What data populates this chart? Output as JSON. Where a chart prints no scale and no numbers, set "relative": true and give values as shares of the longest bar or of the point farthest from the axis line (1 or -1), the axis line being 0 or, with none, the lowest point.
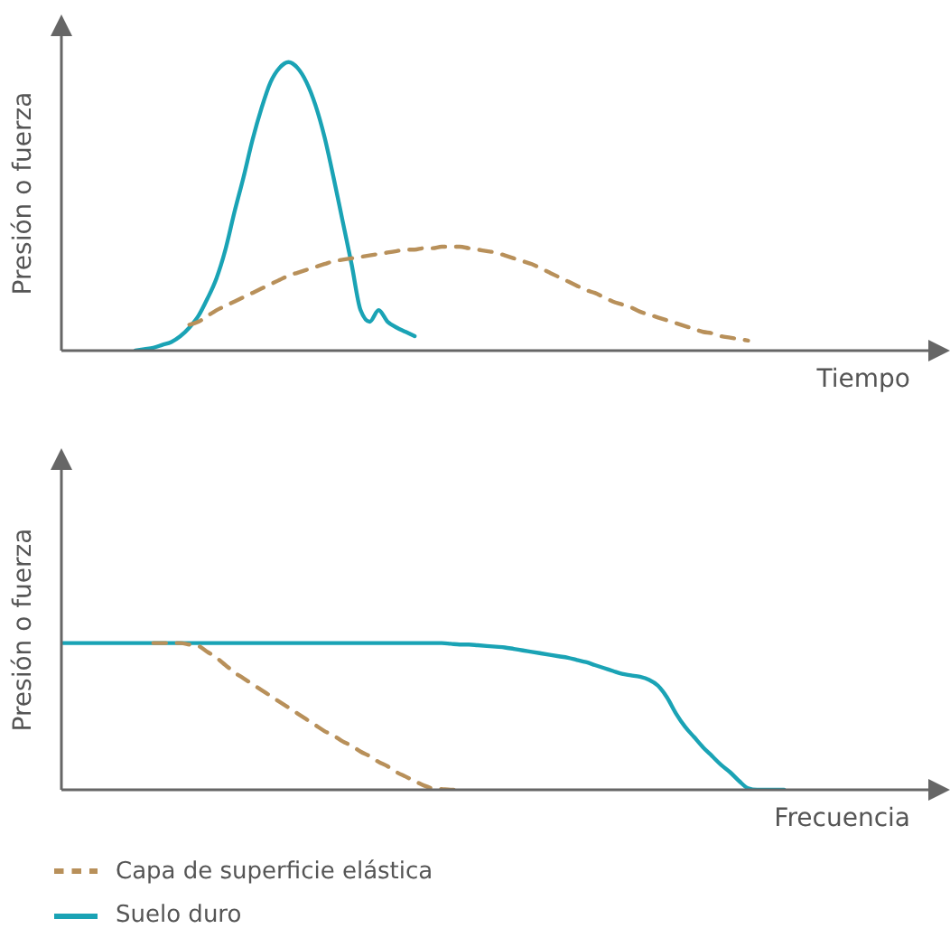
{
  "chart_data": [
    {
      "type": "line",
      "relative": true,
      "marker": "none",
      "xlabel": "Tiempo",
      "ylabel": "Presión o fuerza",
      "categories": [
        null,
        null,
        null,
        null,
        null,
        null,
        null,
        null,
        null,
        null,
        null,
        null,
        null,
        null,
        null,
        null,
        null,
        null,
        null,
        null,
        null,
        null,
        null,
        null,
        null,
        null,
        null,
        null,
        null,
        null,
        null,
        null,
        null,
        null,
        null,
        null,
        null,
        null,
        null,
        null,
        null,
        null,
        null,
        null,
        null,
        null,
        null,
        null,
        null,
        null,
        null,
        null,
        null,
        null,
        null,
        null,
        null,
        null,
        null,
        null,
        null,
        null,
        null,
        null,
        null,
        null,
        null,
        null,
        null,
        null,
        null,
        null,
        null,
        null,
        null,
        null,
        null,
        null,
        null,
        null,
        null,
        null,
        null,
        null,
        null,
        null,
        null,
        null,
        null,
        null,
        null,
        null,
        null,
        null,
        null,
        null,
        null
      ],
      "series": [
        {
          "color": "#1aa3b5",
          "line_style": "solid",
          "values": [
            null,
            null,
            null,
            null,
            null,
            null,
            null,
            null,
            0,
            0.005,
            0.01,
            0.02,
            0.03,
            0.05,
            0.08,
            0.12,
            0.18,
            0.25,
            0.35,
            0.48,
            0.6,
            0.73,
            0.84,
            0.93,
            0.98,
            1,
            0.98,
            0.93,
            0.85,
            0.74,
            0.6,
            0.45,
            0.3,
            0.14,
            0.1,
            0.14,
            0.1,
            0.08,
            0.065,
            0.05,
            null,
            null,
            null,
            null,
            null,
            null,
            null,
            null,
            null,
            null,
            null,
            null,
            null,
            null,
            null,
            null,
            null,
            null,
            null,
            null,
            null,
            null,
            null,
            null,
            null,
            null,
            null,
            null,
            null,
            null,
            null,
            null,
            null,
            null,
            null,
            null,
            null,
            null,
            null,
            null,
            null,
            null,
            null,
            null,
            null,
            null,
            null,
            null,
            null,
            null,
            null,
            null,
            null,
            null,
            null,
            null,
            null
          ]
        },
        {
          "color": "#b8905a",
          "line_style": "dashed",
          "values": [
            null,
            null,
            null,
            null,
            null,
            null,
            null,
            null,
            null,
            null,
            null,
            null,
            null,
            null,
            0.09,
            0.1,
            0.12,
            0.14,
            0.155,
            0.17,
            0.185,
            0.2,
            0.215,
            0.23,
            0.245,
            0.26,
            0.27,
            0.28,
            0.29,
            0.3,
            0.31,
            0.315,
            0.32,
            0.325,
            0.33,
            0.335,
            0.34,
            0.345,
            0.35,
            0.35,
            0.355,
            0.355,
            0.36,
            0.36,
            0.36,
            0.355,
            0.35,
            0.345,
            0.34,
            0.33,
            0.32,
            0.31,
            0.3,
            0.285,
            0.27,
            0.255,
            0.24,
            0.225,
            0.21,
            0.2,
            0.185,
            0.17,
            0.16,
            0.15,
            0.135,
            0.125,
            0.115,
            0.105,
            0.095,
            0.085,
            0.075,
            0.065,
            0.06,
            0.05,
            0.045,
            0.04,
            0.035,
            null,
            null,
            null,
            null,
            null,
            null,
            null,
            null,
            null,
            null,
            null,
            null,
            null,
            null,
            null,
            null,
            null,
            null,
            null,
            null
          ]
        }
      ]
    },
    {
      "type": "line",
      "relative": true,
      "marker": "none",
      "legend": "bottom",
      "xlabel": "Frecuencia",
      "ylabel": "Presión o fuerza",
      "categories": [
        null,
        null,
        null,
        null,
        null,
        null,
        null,
        null,
        null,
        null,
        null,
        null,
        null,
        null,
        null,
        null,
        null,
        null,
        null,
        null,
        null,
        null,
        null,
        null,
        null,
        null,
        null,
        null,
        null,
        null,
        null,
        null,
        null,
        null,
        null,
        null,
        null,
        null,
        null,
        null,
        null,
        null,
        null,
        null,
        null,
        null,
        null,
        null,
        null,
        null,
        null,
        null,
        null,
        null,
        null,
        null,
        null,
        null,
        null,
        null,
        null,
        null,
        null,
        null,
        null,
        null,
        null,
        null,
        null,
        null,
        null,
        null,
        null,
        null,
        null,
        null,
        null,
        null,
        null,
        null,
        null,
        null,
        null,
        null,
        null,
        null,
        null,
        null,
        null,
        null,
        null,
        null,
        null,
        null,
        null,
        null,
        null
      ],
      "series": [
        {
          "name": "Suelo duro",
          "color": "#1aa3b5",
          "line_style": "solid",
          "values": [
            1,
            1,
            1,
            1,
            1,
            1,
            1,
            1,
            1,
            1,
            1,
            1,
            1,
            1,
            1,
            1,
            1,
            1,
            1,
            1,
            1,
            1,
            1,
            1,
            1,
            1,
            1,
            1,
            1,
            1,
            1,
            1,
            1,
            1,
            1,
            1,
            1,
            1,
            1,
            1,
            1,
            1,
            1,
            0.995,
            0.99,
            0.99,
            0.985,
            0.98,
            0.975,
            0.97,
            0.96,
            0.95,
            0.94,
            0.93,
            0.92,
            0.91,
            0.9,
            0.885,
            0.87,
            0.85,
            0.83,
            0.81,
            0.79,
            0.78,
            0.77,
            0.75,
            0.71,
            0.63,
            0.52,
            0.43,
            0.36,
            0.29,
            0.23,
            0.17,
            0.12,
            0.06,
            0.01,
            0,
            0,
            0,
            0,
            null,
            null,
            null,
            null,
            null,
            null,
            null,
            null,
            null,
            null,
            null,
            null,
            null,
            null,
            null,
            null
          ]
        },
        {
          "name": "Capa de superficie elástica",
          "color": "#b8905a",
          "line_style": "dashed",
          "values": [
            null,
            null,
            null,
            null,
            null,
            null,
            null,
            null,
            null,
            null,
            1,
            1,
            1,
            1,
            0.99,
            0.98,
            0.94,
            0.9,
            0.85,
            0.8,
            0.76,
            0.72,
            0.68,
            0.64,
            0.6,
            0.56,
            0.52,
            0.48,
            0.44,
            0.4,
            0.37,
            0.33,
            0.3,
            0.26,
            0.23,
            0.19,
            0.16,
            0.12,
            0.09,
            0.06,
            0.03,
            0.01,
            0.005,
            0,
            0,
            null,
            null,
            null,
            null,
            null,
            null,
            null,
            null,
            null,
            null,
            null,
            null,
            null,
            null,
            null,
            null,
            null,
            null,
            null,
            null,
            null,
            null,
            null,
            null,
            null,
            null,
            null,
            null,
            null,
            null,
            null,
            null,
            null,
            null,
            null,
            null,
            null,
            null,
            null,
            null,
            null,
            null,
            null,
            null,
            null,
            null,
            null,
            null,
            null,
            null,
            null,
            null
          ]
        }
      ]
    }
  ]
}
